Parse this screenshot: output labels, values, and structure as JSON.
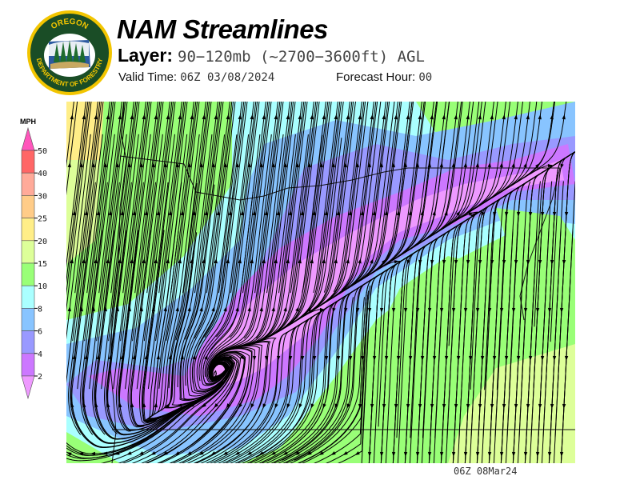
{
  "header": {
    "title": "NAM Streamlines",
    "layer_label": "Layer:",
    "layer_value": "90−120mb (~2700−3600ft) AGL",
    "valid_time_label": "Valid Time:",
    "valid_time_value": "06Z 03/08/2024",
    "forecast_hour_label": "Forecast Hour:",
    "forecast_hour_value": "00"
  },
  "logo": {
    "top_text": "OREGON",
    "bottom_text": "DEPARTMENT OF FORESTRY"
  },
  "legend": {
    "unit": "MPH",
    "ticks": [
      "50",
      "40",
      "30",
      "25",
      "20",
      "15",
      "10",
      "8",
      "6",
      "4",
      "2"
    ],
    "colors": {
      "above_50": "#ff55bb",
      "40-50": "#ff6666",
      "30-40": "#ffaa99",
      "25-30": "#ffcc88",
      "20-25": "#ffee88",
      "15-20": "#ddff99",
      "10-15": "#99ff77",
      "8-10": "#aaffff",
      "6-8": "#88c4ff",
      "4-6": "#9999ff",
      "2-4": "#cc77ff",
      "below_2": "#ee99ff"
    }
  },
  "map": {
    "region": "Oregon",
    "streamline_color": "#000000"
  },
  "footer": {
    "timestamp": "06Z 08Mar24"
  }
}
